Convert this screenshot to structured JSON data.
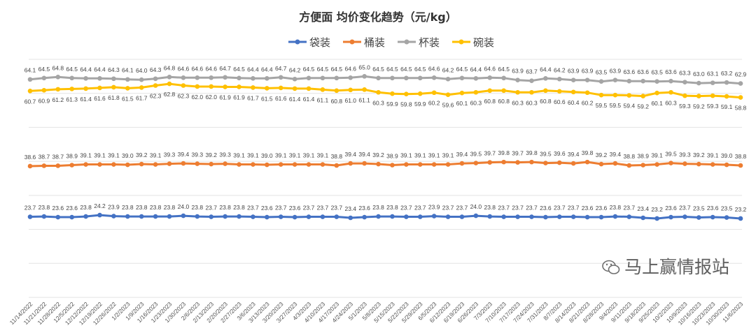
{
  "chart_data": {
    "type": "line",
    "title": "方便面 均价变化趋势（元/kg）",
    "xlabel": "",
    "ylabel": "",
    "ylim": [
      0,
      70
    ],
    "yticks": [
      0,
      10,
      20,
      30,
      40,
      50,
      60,
      70
    ],
    "grid": true,
    "legend_position": "top",
    "categories": [
      "11/14/2022",
      "11/21/2022",
      "11/28/2022",
      "12/5/2022",
      "12/12/2022",
      "12/19/2022",
      "12/26/2022",
      "1/2/2023",
      "1/9/2023",
      "1/16/2023",
      "1/23/2023",
      "1/30/2023",
      "2/6/2023",
      "2/13/2023",
      "2/20/2023",
      "2/27/2023",
      "3/6/2023",
      "3/13/2023",
      "3/20/2023",
      "3/27/2023",
      "4/3/2023",
      "4/10/2023",
      "4/17/2023",
      "4/24/2023",
      "5/1/2023",
      "5/8/2023",
      "5/15/2023",
      "5/22/2023",
      "5/29/2023",
      "6/5/2023",
      "6/12/2023",
      "6/19/2023",
      "6/26/2023",
      "7/3/2023",
      "7/10/2023",
      "7/17/2023",
      "7/24/2023",
      "7/31/2023",
      "8/7/2023",
      "8/14/2023",
      "8/21/2023",
      "8/28/2023",
      "9/4/2023",
      "9/11/2023",
      "9/18/2023",
      "9/25/2023",
      "10/2/2023",
      "10/9/2023",
      "10/16/2023",
      "10/23/2023",
      "10/30/2023",
      "11/6/2023"
    ],
    "series": [
      {
        "name": "袋装",
        "color": "#4472C4",
        "label_pos": "above",
        "values": [
          23.7,
          23.8,
          23.6,
          23.6,
          23.8,
          24.2,
          23.9,
          23.8,
          23.8,
          23.8,
          23.8,
          24.0,
          23.8,
          23.7,
          23.8,
          23.8,
          23.7,
          23.6,
          23.7,
          23.6,
          23.7,
          23.7,
          23.7,
          23.4,
          23.6,
          23.8,
          23.8,
          23.7,
          23.7,
          23.9,
          23.7,
          23.7,
          24.0,
          23.8,
          23.7,
          23.7,
          23.7,
          23.6,
          23.7,
          23.7,
          23.6,
          23.6,
          23.8,
          23.7,
          23.4,
          23.2,
          23.6,
          23.7,
          23.5,
          23.6,
          23.5,
          23.2
        ]
      },
      {
        "name": "桶装",
        "color": "#ED7D31",
        "label_pos": "above",
        "values": [
          38.6,
          38.7,
          38.7,
          38.9,
          39.1,
          39.1,
          39.1,
          39.0,
          39.2,
          39.1,
          39.3,
          39.4,
          39.3,
          39.2,
          39.3,
          39.1,
          39.1,
          39.0,
          39.1,
          39.1,
          39.1,
          39.1,
          38.8,
          39.4,
          39.4,
          39.2,
          38.9,
          39.1,
          39.1,
          39.1,
          39.1,
          39.4,
          39.5,
          39.7,
          39.8,
          39.7,
          39.8,
          39.5,
          39.6,
          39.4,
          39.8,
          39.2,
          39.4,
          38.8,
          38.9,
          39.1,
          39.5,
          39.3,
          39.2,
          39.1,
          39.0,
          38.8
        ]
      },
      {
        "name": "杯装",
        "color": "#A5A5A5",
        "label_pos": "above",
        "values": [
          64.1,
          64.5,
          64.8,
          64.5,
          64.4,
          64.4,
          64.3,
          64.1,
          64.0,
          64.3,
          64.8,
          64.6,
          64.6,
          64.6,
          64.7,
          64.5,
          64.4,
          64.4,
          64.7,
          64.2,
          64.5,
          64.5,
          64.5,
          64.6,
          65.0,
          64.5,
          64.5,
          64.5,
          64.5,
          64.6,
          64.2,
          64.5,
          64.4,
          64.6,
          64.5,
          63.9,
          63.7,
          64.4,
          64.2,
          63.9,
          63.9,
          63.5,
          63.9,
          63.6,
          63.6,
          63.5,
          63.6,
          63.3,
          63.0,
          63.1,
          63.2,
          62.9
        ]
      },
      {
        "name": "碗装",
        "color": "#FFC000",
        "label_pos": "below",
        "values": [
          60.7,
          60.9,
          61.2,
          61.3,
          61.4,
          61.6,
          61.8,
          61.5,
          61.7,
          62.3,
          62.8,
          62.3,
          62.0,
          62.0,
          61.9,
          61.9,
          61.7,
          61.5,
          61.6,
          61.4,
          61.4,
          61.1,
          60.8,
          61.0,
          61.1,
          60.3,
          59.9,
          59.8,
          59.9,
          60.2,
          59.6,
          60.1,
          60.3,
          60.8,
          60.8,
          60.3,
          60.3,
          60.8,
          60.6,
          60.4,
          60.2,
          59.5,
          59.5,
          59.4,
          59.2,
          60.1,
          60.3,
          59.3,
          59.2,
          59.3,
          59.1,
          58.8
        ]
      }
    ]
  },
  "watermark": {
    "text": "马上赢情报站",
    "icon": "wechat-icon"
  }
}
